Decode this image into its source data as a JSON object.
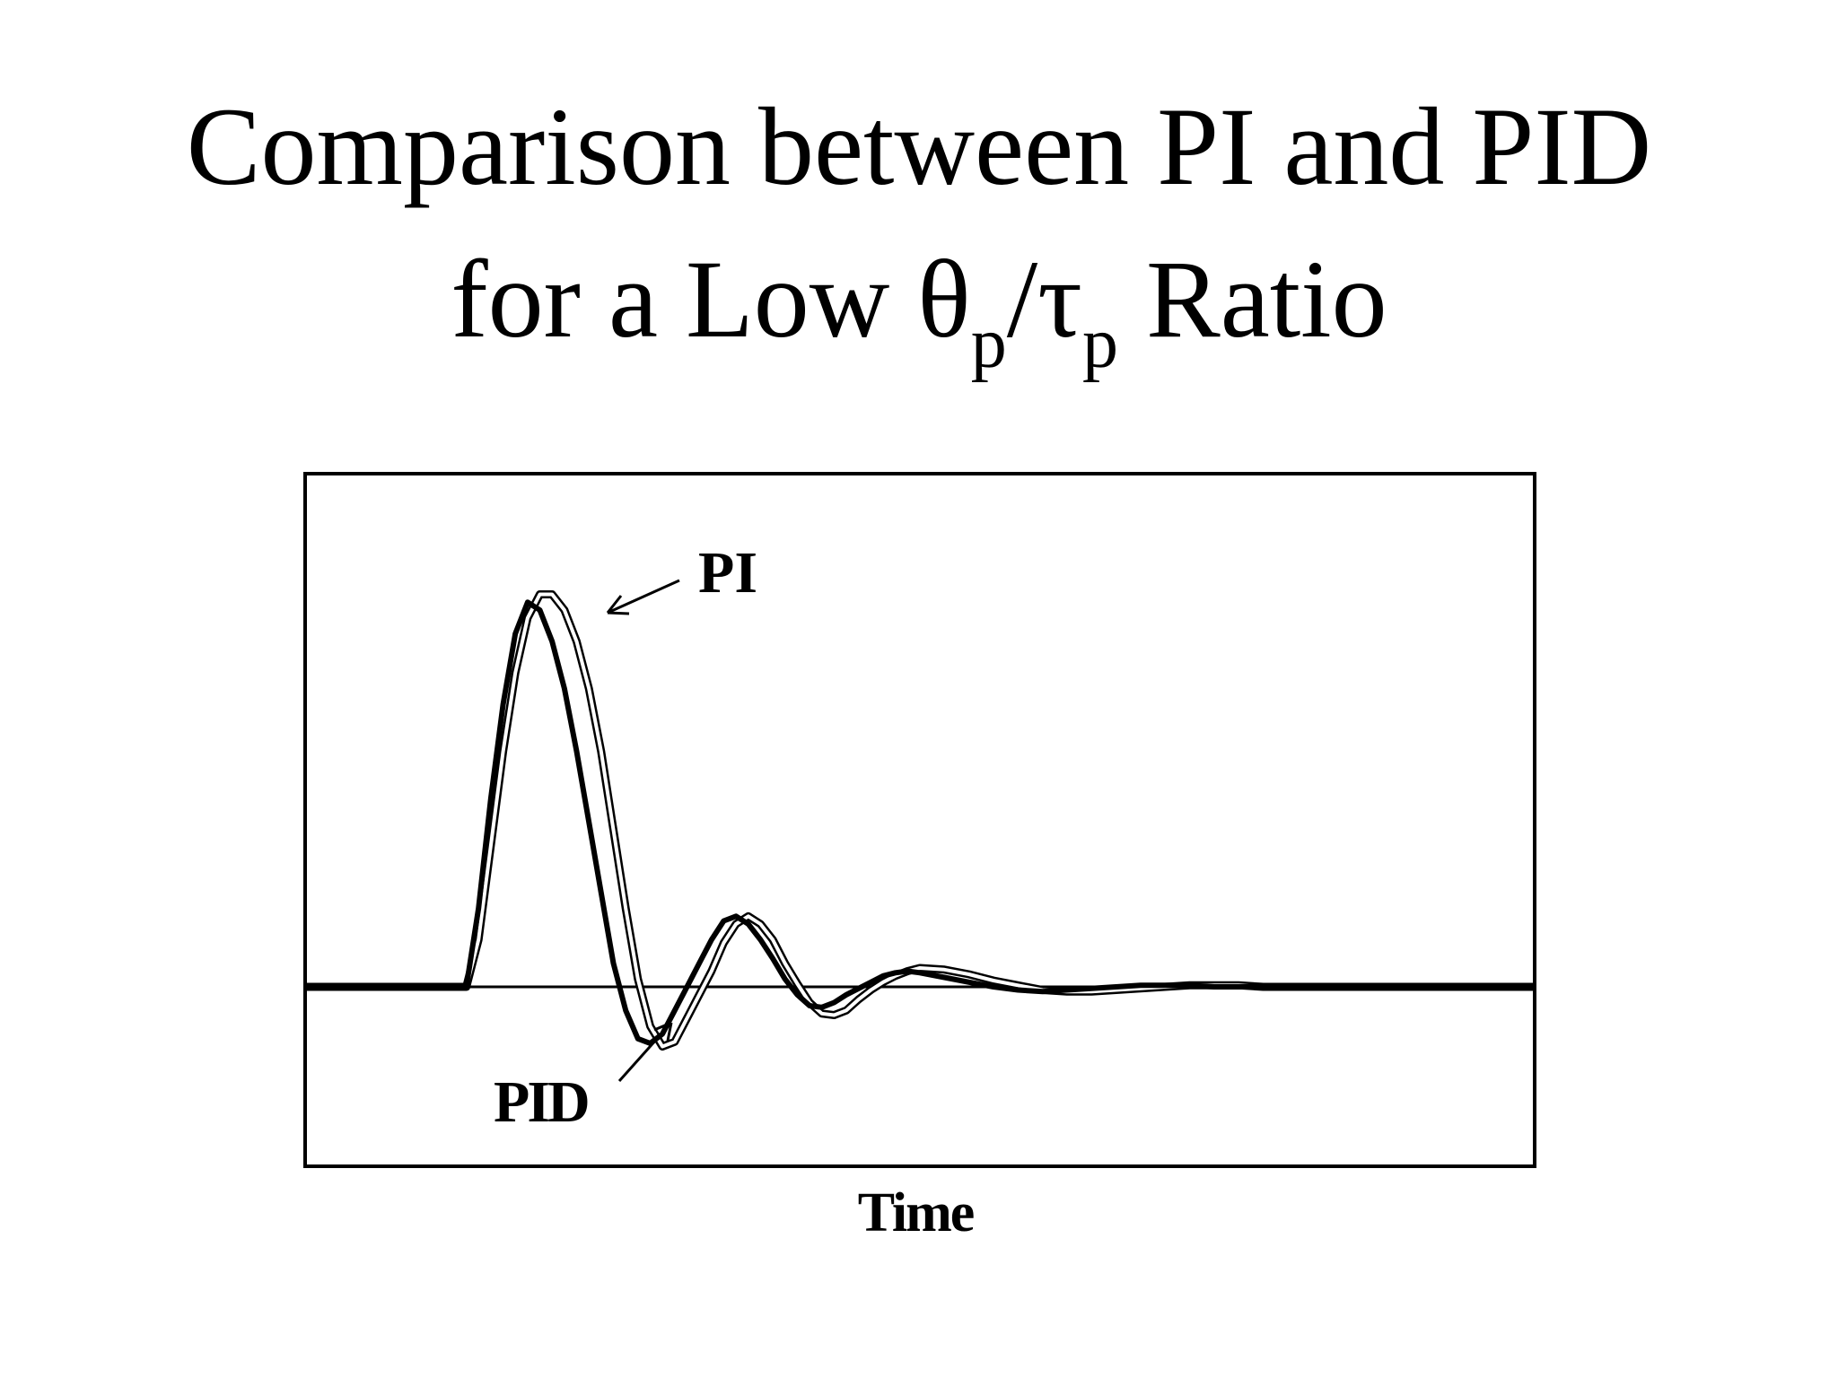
{
  "title": {
    "line1": "Comparison between PI and PID",
    "line2_prefix": "for a Low ",
    "theta": "θ",
    "sub1": "p",
    "slash": "/",
    "tau": "τ",
    "sub2": "p",
    "line2_suffix": " Ratio"
  },
  "chart_data": {
    "type": "line",
    "xlabel": "Time",
    "ylabel": "",
    "grid": false,
    "reference_line_y": 0,
    "xlim": [
      0,
      100
    ],
    "ylim": [
      -1,
      3
    ],
    "series": [
      {
        "name": "PI",
        "stroke_weight": "thin",
        "x": [
          0,
          13,
          14,
          15,
          16,
          17,
          18,
          19,
          20,
          21,
          22,
          23,
          24,
          25,
          26,
          27,
          28,
          29,
          30,
          31,
          32,
          33,
          34,
          35,
          36,
          37,
          38,
          39,
          40,
          41,
          42,
          43,
          44,
          45,
          46,
          47,
          48,
          49,
          50,
          52,
          54,
          56,
          58,
          60,
          62,
          64,
          66,
          68,
          70,
          72,
          74,
          76,
          78,
          80,
          85,
          90,
          95,
          100
        ],
        "y": [
          0,
          0,
          0.3,
          0.9,
          1.5,
          2.0,
          2.35,
          2.5,
          2.5,
          2.4,
          2.2,
          1.9,
          1.5,
          1.0,
          0.5,
          0.05,
          -0.25,
          -0.38,
          -0.35,
          -0.2,
          -0.05,
          0.1,
          0.28,
          0.4,
          0.45,
          0.4,
          0.3,
          0.15,
          0.02,
          -0.1,
          -0.17,
          -0.18,
          -0.15,
          -0.08,
          -0.02,
          0.03,
          0.07,
          0.1,
          0.12,
          0.11,
          0.08,
          0.04,
          0.01,
          -0.02,
          -0.03,
          -0.03,
          -0.02,
          -0.01,
          0,
          0.01,
          0.01,
          0.01,
          0,
          0,
          0,
          0,
          0,
          0
        ]
      },
      {
        "name": "PID",
        "stroke_weight": "thick",
        "x": [
          0,
          13,
          14,
          15,
          16,
          17,
          18,
          19,
          20,
          21,
          22,
          23,
          24,
          25,
          26,
          27,
          28,
          29,
          30,
          31,
          32,
          33,
          34,
          35,
          36,
          37,
          38,
          39,
          40,
          41,
          42,
          43,
          44,
          45,
          46,
          47,
          48,
          49,
          50,
          52,
          54,
          56,
          58,
          60,
          62,
          64,
          66,
          68,
          70,
          72,
          74,
          76,
          78,
          80,
          85,
          90,
          95,
          100
        ],
        "y": [
          0,
          0,
          0.5,
          1.2,
          1.8,
          2.25,
          2.45,
          2.4,
          2.2,
          1.9,
          1.5,
          1.05,
          0.6,
          0.15,
          -0.15,
          -0.33,
          -0.36,
          -0.3,
          -0.15,
          0,
          0.15,
          0.3,
          0.42,
          0.45,
          0.4,
          0.3,
          0.18,
          0.05,
          -0.05,
          -0.12,
          -0.13,
          -0.1,
          -0.05,
          -0.01,
          0.03,
          0.07,
          0.09,
          0.1,
          0.09,
          0.06,
          0.03,
          0,
          -0.02,
          -0.03,
          -0.02,
          -0.01,
          0,
          0.01,
          0.01,
          0.01,
          0,
          0,
          0,
          0,
          0,
          0,
          0,
          0
        ]
      }
    ],
    "annotations": [
      {
        "text": "PI",
        "target": "PI"
      },
      {
        "text": "PID",
        "target": "PID"
      }
    ]
  }
}
